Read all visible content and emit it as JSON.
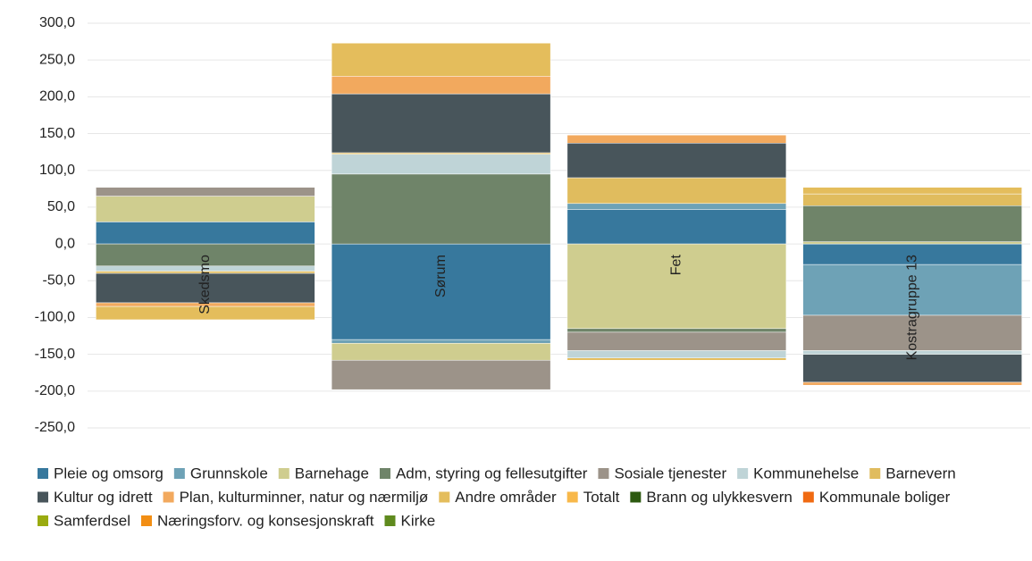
{
  "chart_data": {
    "type": "stacked-bar",
    "categories": [
      "Skedsmo",
      "Sørum",
      "Fet",
      "Kostragruppe 13"
    ],
    "ylim": [
      -250,
      300
    ],
    "yticks": [
      {
        "value": 300,
        "label": "300,0"
      },
      {
        "value": 250,
        "label": "250,0"
      },
      {
        "value": 200,
        "label": "200,0"
      },
      {
        "value": 150,
        "label": "150,0"
      },
      {
        "value": 100,
        "label": "100,0"
      },
      {
        "value": 50,
        "label": "50,0"
      },
      {
        "value": 0,
        "label": "0,0"
      },
      {
        "value": -50,
        "label": "-50,0"
      },
      {
        "value": -100,
        "label": "-100,0"
      },
      {
        "value": -150,
        "label": "-150,0"
      },
      {
        "value": -200,
        "label": "-200,0"
      },
      {
        "value": -250,
        "label": "-250,0"
      }
    ],
    "grid": true,
    "series": [
      {
        "name": "Pleie og omsorg",
        "color": "#37789d",
        "values": [
          30,
          -130,
          47,
          -28
        ]
      },
      {
        "name": "Grunnskole",
        "color": "#6ea2b6",
        "values": [
          null,
          -5,
          8,
          -69
        ]
      },
      {
        "name": "Barnehage",
        "color": "#cfcd8f",
        "values": [
          35,
          -23,
          -115,
          3
        ]
      },
      {
        "name": "Adm, styring og fellesutgifter",
        "color": "#6f8469",
        "values": [
          -30,
          95,
          -5,
          49
        ]
      },
      {
        "name": "Sosiale tjenester",
        "color": "#9c9389",
        "values": [
          12,
          -40,
          -25,
          -48
        ]
      },
      {
        "name": "Kommunehelse",
        "color": "#bfd4d7",
        "values": [
          -7,
          27,
          -10,
          -5
        ]
      },
      {
        "name": "Barnevern",
        "color": "#e0bc5e",
        "values": [
          -3,
          2,
          35,
          16
        ]
      },
      {
        "name": "Kultur og idrett",
        "color": "#48555b",
        "values": [
          -40,
          80,
          47,
          -38
        ]
      },
      {
        "name": "Plan, kulturminner, natur og nærmiljø",
        "color": "#f2a95e",
        "values": [
          -5,
          24,
          11,
          -4
        ]
      },
      {
        "name": "Andre områder",
        "color": "#e4bd5c",
        "values": [
          -18,
          45,
          -3,
          9
        ]
      },
      {
        "name": "Totalt",
        "color": "#f8b84a",
        "values": [
          null,
          null,
          null,
          null
        ]
      },
      {
        "name": "Brann og ulykkesvern",
        "color": "#2d5a10",
        "values": [
          null,
          null,
          null,
          null
        ]
      },
      {
        "name": "Kommunale boliger",
        "color": "#f06a12",
        "values": [
          null,
          null,
          null,
          null
        ]
      },
      {
        "name": "Samferdsel",
        "color": "#9aab10",
        "values": [
          null,
          null,
          null,
          null
        ]
      },
      {
        "name": "Næringsforv. og konsesjonskraft",
        "color": "#f28e14",
        "values": [
          null,
          null,
          null,
          null
        ]
      },
      {
        "name": "Kirke",
        "color": "#5f8a1e",
        "values": [
          null,
          null,
          null,
          null
        ]
      }
    ]
  }
}
